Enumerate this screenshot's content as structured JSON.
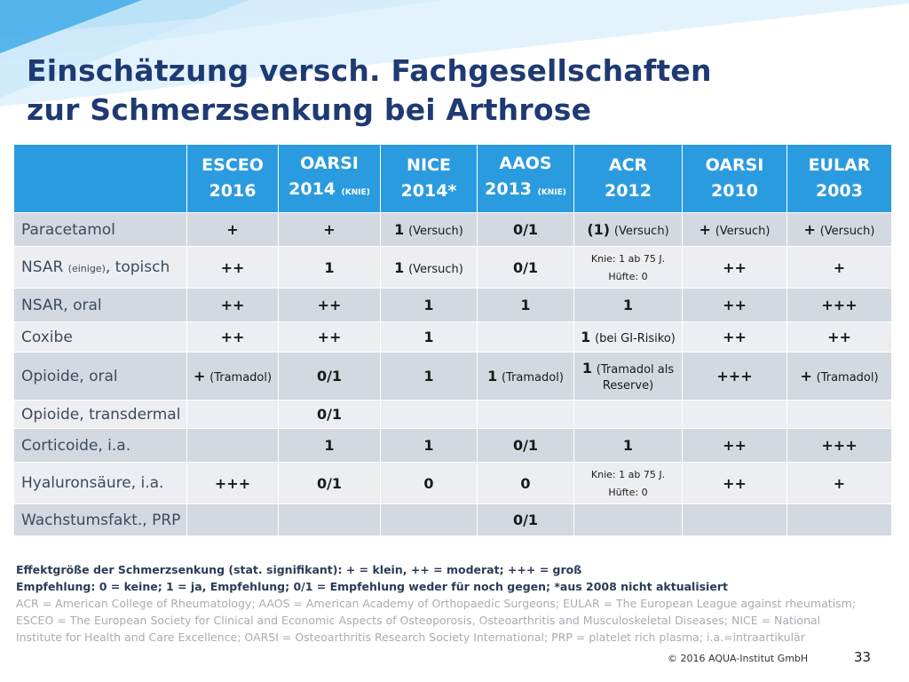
{
  "slide": {
    "title_line1": "Einschätzung versch. Fachgesellschaften",
    "title_line2": "zur Schmerzsenkung bei Arthrose",
    "copyright": "© 2016 AQUA-Institut GmbH",
    "page_number": "33"
  },
  "table": {
    "columns": [
      {
        "name": "ESCEO",
        "year": "2016",
        "note": ""
      },
      {
        "name": "OARSI",
        "year": "2014",
        "note": "(KNIE)"
      },
      {
        "name": "NICE",
        "year": "2014*",
        "note": ""
      },
      {
        "name": "AAOS",
        "year": "2013",
        "note": "(KNIE)"
      },
      {
        "name": "ACR",
        "year": "2012",
        "note": ""
      },
      {
        "name": "OARSI",
        "year": "2010",
        "note": ""
      },
      {
        "name": "EULAR",
        "year": "2003",
        "note": ""
      }
    ],
    "rows": [
      {
        "label": "Paracetamol",
        "label_small": "",
        "label_suffix": "",
        "cells": [
          {
            "main": "+",
            "note": ""
          },
          {
            "main": "+",
            "note": ""
          },
          {
            "main": "1",
            "note": "(Versuch)"
          },
          {
            "main": "0/1",
            "note": ""
          },
          {
            "main": "(1)",
            "note": "(Versuch)"
          },
          {
            "main": "+",
            "note": "(Versuch)"
          },
          {
            "main": "+",
            "note": "(Versuch)"
          }
        ]
      },
      {
        "label": "NSAR",
        "label_small": "(einige)",
        "label_suffix": ", topisch",
        "cells": [
          {
            "main": "++",
            "note": ""
          },
          {
            "main": "1",
            "note": ""
          },
          {
            "main": "1",
            "note": "(Versuch)"
          },
          {
            "main": "0/1",
            "note": ""
          },
          {
            "main": "",
            "note": "",
            "line1": "Knie: 1 ab 75 J.",
            "line2": "Hüfte: 0"
          },
          {
            "main": "++",
            "note": ""
          },
          {
            "main": "+",
            "note": ""
          }
        ]
      },
      {
        "label": "NSAR, oral",
        "label_small": "",
        "label_suffix": "",
        "cells": [
          {
            "main": "++",
            "note": ""
          },
          {
            "main": "++",
            "note": ""
          },
          {
            "main": "1",
            "note": ""
          },
          {
            "main": "1",
            "note": ""
          },
          {
            "main": "1",
            "note": ""
          },
          {
            "main": "++",
            "note": ""
          },
          {
            "main": "+++",
            "note": ""
          }
        ]
      },
      {
        "label": "Coxibe",
        "label_small": "",
        "label_suffix": "",
        "cells": [
          {
            "main": "++",
            "note": ""
          },
          {
            "main": "++",
            "note": ""
          },
          {
            "main": "1",
            "note": ""
          },
          {
            "main": "",
            "note": ""
          },
          {
            "main": "1",
            "note": "(bei GI-Risiko)"
          },
          {
            "main": "++",
            "note": ""
          },
          {
            "main": "++",
            "note": ""
          }
        ]
      },
      {
        "label": "Opioide, oral",
        "label_small": "",
        "label_suffix": "",
        "cells": [
          {
            "main": "+",
            "note": "(Tramadol)"
          },
          {
            "main": "0/1",
            "note": ""
          },
          {
            "main": "1",
            "note": ""
          },
          {
            "main": "1",
            "note": "(Tramadol)"
          },
          {
            "main": "1",
            "note": "(Tramadol als",
            "line2": "Reserve)"
          },
          {
            "main": "+++",
            "note": ""
          },
          {
            "main": "+",
            "note": "(Tramadol)"
          }
        ]
      },
      {
        "label": "Opioide, transdermal",
        "label_small": "",
        "label_suffix": "",
        "cells": [
          {
            "main": "",
            "note": ""
          },
          {
            "main": "0/1",
            "note": ""
          },
          {
            "main": "",
            "note": ""
          },
          {
            "main": "",
            "note": ""
          },
          {
            "main": "",
            "note": ""
          },
          {
            "main": "",
            "note": ""
          },
          {
            "main": "",
            "note": ""
          }
        ]
      },
      {
        "label": "Corticoide, i.a.",
        "label_small": "",
        "label_suffix": "",
        "cells": [
          {
            "main": "",
            "note": ""
          },
          {
            "main": "1",
            "note": ""
          },
          {
            "main": "1",
            "note": ""
          },
          {
            "main": "0/1",
            "note": ""
          },
          {
            "main": "1",
            "note": ""
          },
          {
            "main": "++",
            "note": ""
          },
          {
            "main": "+++",
            "note": ""
          }
        ]
      },
      {
        "label": "Hyaluronsäure, i.a.",
        "label_small": "",
        "label_suffix": "",
        "cells": [
          {
            "main": "+++",
            "note": ""
          },
          {
            "main": "0/1",
            "note": ""
          },
          {
            "main": "0",
            "note": ""
          },
          {
            "main": "0",
            "note": ""
          },
          {
            "main": "",
            "note": "",
            "line1": "Knie: 1 ab 75 J.",
            "line2": "Hüfte: 0"
          },
          {
            "main": "++",
            "note": ""
          },
          {
            "main": "+",
            "note": ""
          }
        ]
      },
      {
        "label": "Wachstumsfakt., PRP",
        "label_small": "",
        "label_suffix": "",
        "cells": [
          {
            "main": "",
            "note": ""
          },
          {
            "main": "",
            "note": ""
          },
          {
            "main": "",
            "note": ""
          },
          {
            "main": "0/1",
            "note": ""
          },
          {
            "main": "",
            "note": ""
          },
          {
            "main": "",
            "note": ""
          },
          {
            "main": "",
            "note": ""
          }
        ]
      }
    ]
  },
  "footnotes": {
    "line1": "Effektgröße der Schmerzsenkung (stat. signifikant): + = klein, ++ = moderat; +++ = groß",
    "line2": "Empfehlung: 0 = keine; 1 = ja, Empfehlung; 0/1 = Empfehlung weder für noch gegen; *aus 2008 nicht aktualisiert",
    "line3": "ACR = American College of Rheumatology; AAOS = American Academy of Orthopaedic Surgeons; EULAR = The European League against rheumatism;",
    "line4": "ESCEO = The European Society for Clinical and Economic Aspects of Osteoporosis, Osteoarthritis and Musculoskeletal Diseases; NICE = National",
    "line5": "Institute for Health and Care Excellence; OARSI = Osteoarthritis Research Society International; PRP = platelet rich plasma; i.a.=intraartikulär"
  },
  "colors": {
    "header_blue": "#2b9be0",
    "title_navy": "#1f3a73",
    "row_dark": "#d4d8e0",
    "row_light": "#eceef2"
  }
}
